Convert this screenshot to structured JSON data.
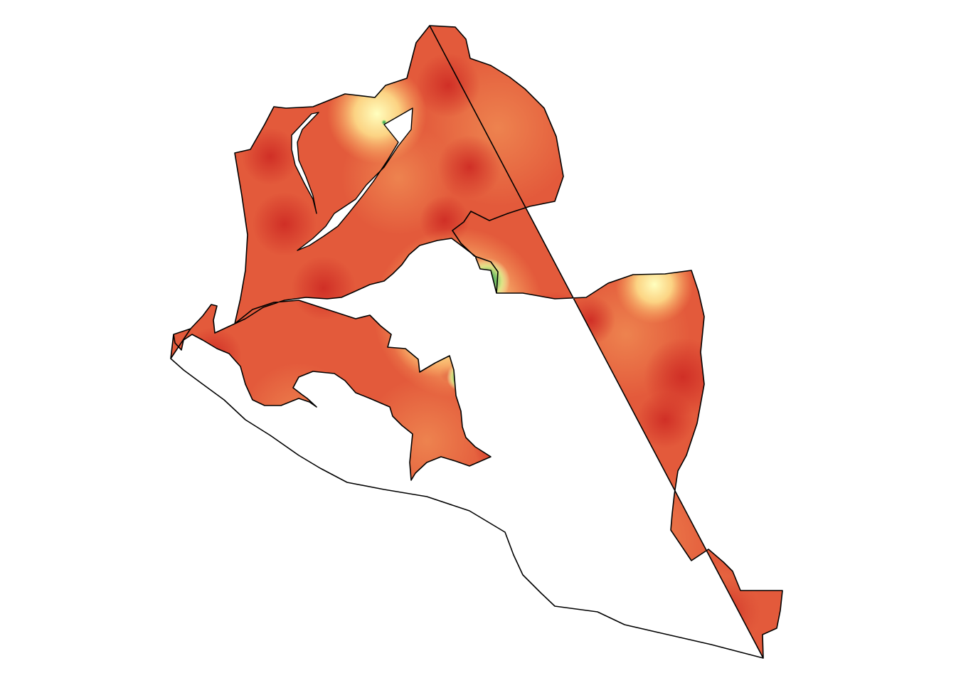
{
  "map": {
    "kind": "interpolated-surface-choropleth",
    "labels": [],
    "legend": null,
    "colors": {
      "background": "#ffffff",
      "outline": "#000000",
      "ramp_low": "#1a9850",
      "ramp_mid": "#ffffbf",
      "ramp_high": "#d73027",
      "base": "#e35a3b"
    },
    "hotspots": [
      {
        "name": "green-center-1",
        "level": 0.05
      },
      {
        "name": "green-center-2",
        "level": 0.1
      },
      {
        "name": "green-center-3",
        "level": 0.15
      },
      {
        "name": "green-center-4",
        "level": 0.15
      },
      {
        "name": "yellow-top",
        "level": 0.55
      },
      {
        "name": "yellow-center-east",
        "level": 0.55
      },
      {
        "name": "yellow-south",
        "level": 0.55
      },
      {
        "name": "yellow-southeast",
        "level": 0.55
      }
    ]
  }
}
